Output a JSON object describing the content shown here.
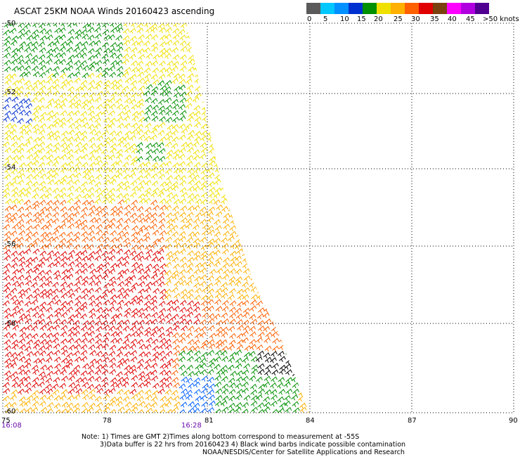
{
  "title": "ASCAT 25KM NOAA Winds 20160423 ascending",
  "colorbar": {
    "colors": [
      "#5a5a5a",
      "#00c8ff",
      "#0090ff",
      "#0030d0",
      "#009000",
      "#f0e000",
      "#ffb000",
      "#ff6000",
      "#e00000",
      "#7a4010",
      "#ff00ff",
      "#b000e0",
      "#500090"
    ],
    "labels": [
      "0",
      "5",
      "10",
      "15",
      "20",
      "25",
      "30",
      "35",
      "40",
      "45",
      ">50 knots"
    ]
  },
  "map": {
    "lat_labels": [
      "-50",
      "-52",
      "-54",
      "-56",
      "-58",
      "-60"
    ],
    "lon_labels": [
      "75",
      "78",
      "81",
      "84",
      "87",
      "90"
    ],
    "lat_range": [
      -60,
      -50
    ],
    "lon_range": [
      75,
      90
    ]
  },
  "times": [
    "16:08",
    "16:28"
  ],
  "notes": [
    "Note: 1) Times are GMT 2)Times along bottom correspond to measurement at -55S",
    "3)Data buffer is 22 hrs from 20160423 4) Black wind barbs indicate possible contamination",
    "NOAA/NESDIS/Center for Satellite Applications and Research"
  ]
}
